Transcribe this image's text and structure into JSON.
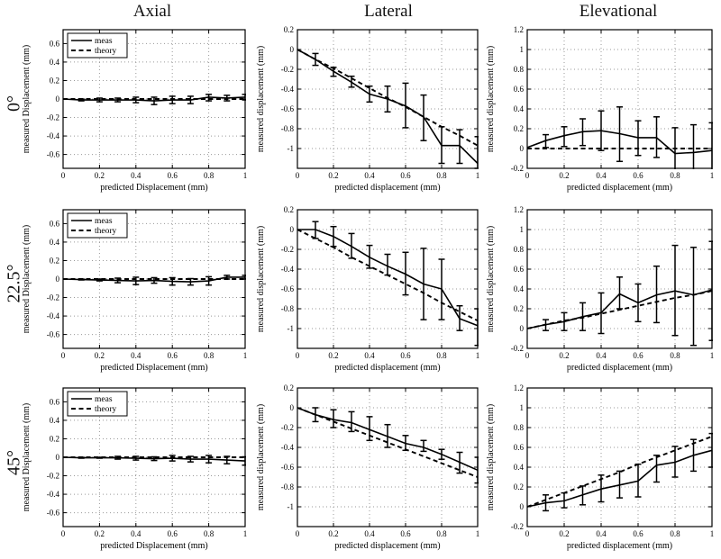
{
  "figure": {
    "col_titles": [
      "Axial",
      "Lateral",
      "Elevational"
    ],
    "row_labels": [
      "0°",
      "22.5°",
      "45°"
    ],
    "legend_entries": [
      "meas",
      "theory"
    ],
    "line_color": "#000000",
    "grid_color": "#9a9a9a"
  },
  "chart_data": [
    {
      "type": "line",
      "row": "0°",
      "column": "Axial",
      "legend": true,
      "grid": true,
      "xlabel": "predicted Displacement (mm)",
      "ylabel": "measured Displacement (mm)",
      "xlim": [
        0,
        1
      ],
      "ylim": [
        -0.75,
        0.75
      ],
      "xticks": [
        0,
        0.2,
        0.4,
        0.6,
        0.8,
        1
      ],
      "yticks": [
        -0.6,
        -0.4,
        -0.2,
        0,
        0.2,
        0.4,
        0.6
      ],
      "x": [
        0,
        0.1,
        0.2,
        0.3,
        0.4,
        0.5,
        0.6,
        0.7,
        0.8,
        0.9,
        1
      ],
      "series": [
        {
          "name": "meas",
          "style": "solid",
          "values": [
            0,
            -0.01,
            -0.01,
            -0.01,
            -0.01,
            -0.02,
            -0.01,
            -0.01,
            0.02,
            0.01,
            0.02
          ],
          "lo": [
            0,
            -0.02,
            -0.03,
            -0.03,
            -0.04,
            -0.06,
            -0.05,
            -0.05,
            -0.02,
            -0.02,
            -0.01
          ],
          "hi": [
            0,
            0,
            0.01,
            0.01,
            0.02,
            0.02,
            0.03,
            0.03,
            0.05,
            0.04,
            0.05
          ]
        },
        {
          "name": "theory",
          "style": "dashed",
          "values": [
            0,
            0,
            0,
            0,
            0,
            0,
            0,
            0,
            0,
            0,
            0
          ]
        }
      ]
    },
    {
      "type": "line",
      "row": "0°",
      "column": "Lateral",
      "legend": false,
      "grid": true,
      "xlabel": "predicted displacement (mm)",
      "ylabel": "measured displacement (mm)",
      "xlim": [
        0,
        1
      ],
      "ylim": [
        -1.2,
        0.2
      ],
      "xticks": [
        0,
        0.2,
        0.4,
        0.6,
        0.8,
        1
      ],
      "yticks": [
        -1,
        -0.8,
        -0.6,
        -0.4,
        -0.2,
        0,
        0.2
      ],
      "x": [
        0,
        0.1,
        0.2,
        0.3,
        0.4,
        0.5,
        0.6,
        0.7,
        0.8,
        0.9,
        1
      ],
      "series": [
        {
          "name": "meas",
          "style": "solid",
          "values": [
            0,
            -0.1,
            -0.22,
            -0.33,
            -0.45,
            -0.5,
            -0.57,
            -0.68,
            -0.97,
            -0.97,
            -1.15
          ],
          "lo": [
            0,
            -0.16,
            -0.27,
            -0.38,
            -0.53,
            -0.63,
            -0.79,
            -0.92,
            -1.15,
            -1.15,
            -1.2
          ],
          "hi": [
            0,
            -0.04,
            -0.18,
            -0.27,
            -0.37,
            -0.37,
            -0.34,
            -0.46,
            -0.78,
            -0.81,
            -0.88
          ]
        },
        {
          "name": "theory",
          "style": "dashed",
          "values": [
            0,
            -0.1,
            -0.19,
            -0.29,
            -0.39,
            -0.49,
            -0.58,
            -0.68,
            -0.78,
            -0.87,
            -0.97
          ]
        }
      ]
    },
    {
      "type": "line",
      "row": "0°",
      "column": "Elevational",
      "legend": false,
      "grid": true,
      "xlabel": "predicted displacement (mm)",
      "ylabel": "measured displacement (mm)",
      "xlim": [
        0,
        1
      ],
      "ylim": [
        -0.2,
        1.2
      ],
      "xticks": [
        0,
        0.2,
        0.4,
        0.6,
        0.8,
        1
      ],
      "yticks": [
        -0.2,
        0,
        0.2,
        0.4,
        0.6,
        0.8,
        1,
        1.2
      ],
      "x": [
        0,
        0.1,
        0.2,
        0.3,
        0.4,
        0.5,
        0.6,
        0.7,
        0.8,
        0.9,
        1
      ],
      "series": [
        {
          "name": "meas",
          "style": "solid",
          "values": [
            0.01,
            0.08,
            0.13,
            0.17,
            0.18,
            0.15,
            0.11,
            0.11,
            -0.05,
            -0.04,
            -0.02
          ],
          "lo": [
            0.01,
            0.01,
            0.02,
            0.03,
            -0.02,
            -0.13,
            -0.07,
            -0.09,
            -0.25,
            -0.25,
            -0.25
          ],
          "hi": [
            0.01,
            0.14,
            0.22,
            0.3,
            0.38,
            0.42,
            0.28,
            0.32,
            0.21,
            0.24,
            0.26
          ]
        },
        {
          "name": "theory",
          "style": "dashed",
          "values": [
            0,
            0,
            0,
            0,
            0,
            0,
            0,
            0,
            0,
            0,
            0
          ]
        }
      ]
    },
    {
      "type": "line",
      "row": "22.5°",
      "column": "Axial",
      "legend": true,
      "grid": true,
      "xlabel": "predicted Displacement (mm)",
      "ylabel": "measured Displacement (mm)",
      "xlim": [
        0,
        1
      ],
      "ylim": [
        -0.75,
        0.75
      ],
      "xticks": [
        0,
        0.2,
        0.4,
        0.6,
        0.8,
        1
      ],
      "yticks": [
        -0.6,
        -0.4,
        -0.2,
        0,
        0.2,
        0.4,
        0.6
      ],
      "x": [
        0,
        0.1,
        0.2,
        0.3,
        0.4,
        0.5,
        0.6,
        0.7,
        0.8,
        0.9,
        1
      ],
      "series": [
        {
          "name": "meas",
          "style": "solid",
          "values": [
            0,
            -0.005,
            -0.01,
            -0.015,
            -0.02,
            -0.015,
            -0.025,
            -0.03,
            -0.02,
            0.02,
            0.02
          ],
          "lo": [
            0,
            -0.01,
            -0.02,
            -0.04,
            -0.06,
            -0.045,
            -0.065,
            -0.065,
            -0.065,
            0,
            0
          ],
          "hi": [
            0,
            0,
            0,
            0.01,
            0.02,
            0.015,
            0.015,
            0.005,
            0.025,
            0.04,
            0.04
          ]
        },
        {
          "name": "theory",
          "style": "dashed",
          "values": [
            0,
            0,
            0,
            0,
            0,
            0,
            0,
            0,
            0,
            0,
            0
          ]
        }
      ]
    },
    {
      "type": "line",
      "row": "22.5°",
      "column": "Lateral",
      "legend": false,
      "grid": true,
      "xlabel": "predicted displacement (mm)",
      "ylabel": "measured displacement (mm)",
      "xlim": [
        0,
        1
      ],
      "ylim": [
        -1.2,
        0.2
      ],
      "xticks": [
        0,
        0.2,
        0.4,
        0.6,
        0.8,
        1
      ],
      "yticks": [
        -1,
        -0.8,
        -0.6,
        -0.4,
        -0.2,
        0,
        0.2
      ],
      "x": [
        0,
        0.1,
        0.2,
        0.3,
        0.4,
        0.5,
        0.6,
        0.7,
        0.8,
        0.9,
        1
      ],
      "series": [
        {
          "name": "meas",
          "style": "solid",
          "values": [
            0,
            0,
            -0.07,
            -0.17,
            -0.28,
            -0.37,
            -0.45,
            -0.55,
            -0.6,
            -0.9,
            -0.97
          ],
          "lo": [
            0,
            -0.09,
            -0.17,
            -0.29,
            -0.39,
            -0.46,
            -0.66,
            -0.91,
            -0.91,
            -1.02,
            -1.17
          ],
          "hi": [
            0,
            0.08,
            0.03,
            -0.04,
            -0.16,
            -0.25,
            -0.23,
            -0.19,
            -0.3,
            -0.77,
            -0.8
          ]
        },
        {
          "name": "theory",
          "style": "dashed",
          "values": [
            0,
            -0.09,
            -0.18,
            -0.28,
            -0.37,
            -0.46,
            -0.55,
            -0.64,
            -0.74,
            -0.83,
            -0.92
          ]
        }
      ]
    },
    {
      "type": "line",
      "row": "22.5°",
      "column": "Elevational",
      "legend": false,
      "grid": true,
      "xlabel": "predicted displacement (mm)",
      "ylabel": "measured displacement (mm)",
      "xlim": [
        0,
        1
      ],
      "ylim": [
        -0.2,
        1.2
      ],
      "xticks": [
        0,
        0.2,
        0.4,
        0.6,
        0.8,
        1
      ],
      "yticks": [
        -0.2,
        0,
        0.2,
        0.4,
        0.6,
        0.8,
        1,
        1.2
      ],
      "x": [
        0,
        0.1,
        0.2,
        0.3,
        0.4,
        0.5,
        0.6,
        0.7,
        0.8,
        0.9,
        1
      ],
      "series": [
        {
          "name": "meas",
          "style": "solid",
          "values": [
            0,
            0.04,
            0.07,
            0.12,
            0.16,
            0.35,
            0.26,
            0.34,
            0.38,
            0.34,
            0.39
          ],
          "lo": [
            0,
            -0.02,
            -0.02,
            -0.02,
            -0.05,
            0.2,
            0.07,
            0.06,
            -0.07,
            -0.17,
            -0.12
          ],
          "hi": [
            0,
            0.09,
            0.16,
            0.26,
            0.36,
            0.52,
            0.45,
            0.63,
            0.84,
            0.82,
            0.88
          ]
        },
        {
          "name": "theory",
          "style": "dashed",
          "values": [
            0,
            0.04,
            0.08,
            0.11,
            0.15,
            0.19,
            0.23,
            0.27,
            0.31,
            0.34,
            0.38
          ]
        }
      ]
    },
    {
      "type": "line",
      "row": "45°",
      "column": "Axial",
      "legend": true,
      "grid": true,
      "xlabel": "predicted Displacement (mm)",
      "ylabel": "measured Displacement (mm)",
      "xlim": [
        0,
        1
      ],
      "ylim": [
        -0.75,
        0.75
      ],
      "xticks": [
        0,
        0.2,
        0.4,
        0.6,
        0.8,
        1
      ],
      "yticks": [
        -0.6,
        -0.4,
        -0.2,
        0,
        0.2,
        0.4,
        0.6
      ],
      "x": [
        0,
        0.1,
        0.2,
        0.3,
        0.4,
        0.5,
        0.6,
        0.7,
        0.8,
        0.9,
        1
      ],
      "series": [
        {
          "name": "meas",
          "style": "solid",
          "values": [
            0,
            -0.005,
            -0.005,
            -0.005,
            -0.01,
            -0.015,
            -0.01,
            -0.02,
            -0.02,
            -0.03,
            -0.04
          ],
          "lo": [
            0,
            -0.01,
            -0.01,
            -0.02,
            -0.03,
            -0.035,
            -0.04,
            -0.05,
            -0.06,
            -0.07,
            -0.085
          ],
          "hi": [
            0,
            0,
            0,
            0.01,
            0.01,
            0.005,
            0.02,
            0.01,
            0.02,
            0.01,
            0.005
          ]
        },
        {
          "name": "theory",
          "style": "dashed",
          "values": [
            0,
            0,
            0,
            0,
            0,
            0,
            0,
            0,
            0,
            0,
            0
          ]
        }
      ]
    },
    {
      "type": "line",
      "row": "45°",
      "column": "Lateral",
      "legend": false,
      "grid": true,
      "xlabel": "predicted displacement (mm)",
      "ylabel": "measured displacement (mm)",
      "xlim": [
        0,
        1
      ],
      "ylim": [
        -1.2,
        0.2
      ],
      "xticks": [
        0,
        0.2,
        0.4,
        0.6,
        0.8,
        1
      ],
      "yticks": [
        -1,
        -0.8,
        -0.6,
        -0.4,
        -0.2,
        0,
        0.2
      ],
      "x": [
        0,
        0.1,
        0.2,
        0.3,
        0.4,
        0.5,
        0.6,
        0.7,
        0.8,
        0.9,
        1
      ],
      "series": [
        {
          "name": "meas",
          "style": "solid",
          "values": [
            0,
            -0.07,
            -0.12,
            -0.15,
            -0.22,
            -0.29,
            -0.36,
            -0.4,
            -0.47,
            -0.55,
            -0.63
          ],
          "lo": [
            0,
            -0.14,
            -0.2,
            -0.24,
            -0.33,
            -0.4,
            -0.43,
            -0.44,
            -0.52,
            -0.66,
            -0.76
          ],
          "hi": [
            0,
            0,
            -0.02,
            -0.04,
            -0.09,
            -0.17,
            -0.28,
            -0.33,
            -0.42,
            -0.45,
            -0.5
          ]
        },
        {
          "name": "theory",
          "style": "dashed",
          "values": [
            0,
            -0.07,
            -0.14,
            -0.21,
            -0.28,
            -0.35,
            -0.42,
            -0.49,
            -0.56,
            -0.63,
            -0.7
          ]
        }
      ]
    },
    {
      "type": "line",
      "row": "45°",
      "column": "Elevational",
      "legend": false,
      "grid": true,
      "xlabel": "predicted displacement (mm)",
      "ylabel": "measured displacement (mm)",
      "xlim": [
        0,
        1
      ],
      "ylim": [
        -0.2,
        1.2
      ],
      "xticks": [
        0,
        0.2,
        0.4,
        0.6,
        0.8,
        1
      ],
      "yticks": [
        -0.2,
        0,
        0.2,
        0.4,
        0.6,
        0.8,
        1,
        1.2
      ],
      "x": [
        0,
        0.1,
        0.2,
        0.3,
        0.4,
        0.5,
        0.6,
        0.7,
        0.8,
        0.9,
        1
      ],
      "series": [
        {
          "name": "meas",
          "style": "solid",
          "values": [
            0,
            0.04,
            0.06,
            0.12,
            0.18,
            0.22,
            0.26,
            0.42,
            0.45,
            0.52,
            0.57
          ],
          "lo": [
            0,
            -0.04,
            -0.01,
            0.02,
            0.05,
            0.09,
            0.1,
            0.25,
            0.3,
            0.36,
            0.4
          ],
          "hi": [
            0,
            0.12,
            0.14,
            0.21,
            0.32,
            0.36,
            0.43,
            0.52,
            0.61,
            0.68,
            0.74
          ]
        },
        {
          "name": "theory",
          "style": "dashed",
          "values": [
            0,
            0.07,
            0.14,
            0.21,
            0.28,
            0.35,
            0.43,
            0.5,
            0.57,
            0.64,
            0.71
          ]
        }
      ]
    }
  ]
}
